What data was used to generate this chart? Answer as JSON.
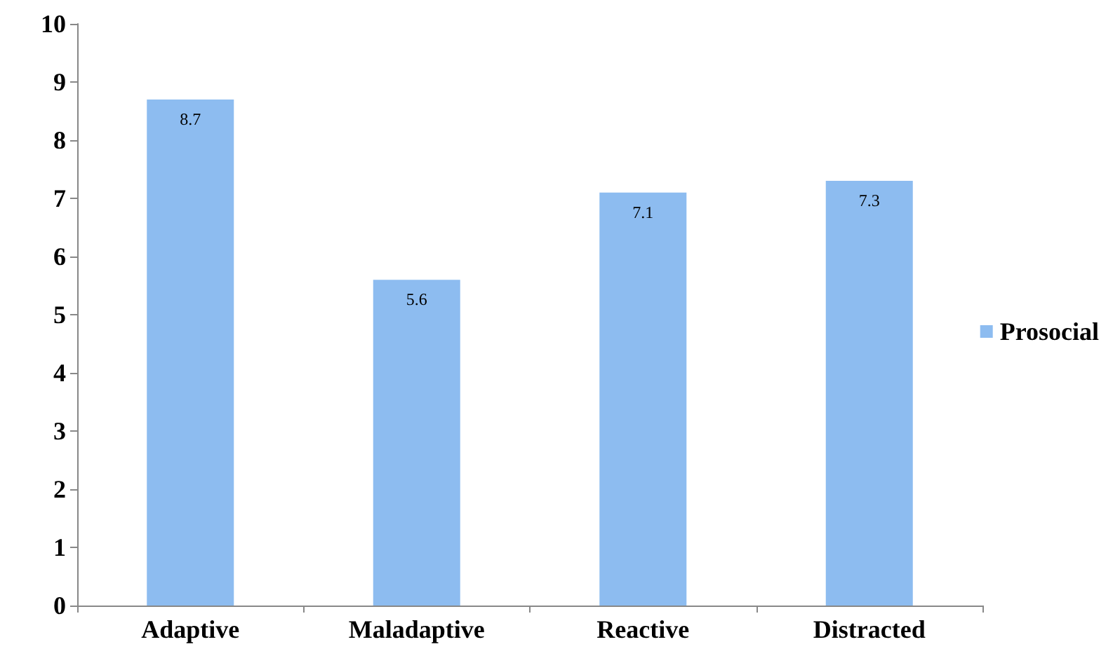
{
  "chart_data": {
    "type": "bar",
    "categories": [
      "Adaptive",
      "Maladaptive",
      "Reactive",
      "Distracted"
    ],
    "series": [
      {
        "name": "Prosocial",
        "color": "#8dbcf0",
        "values": [
          8.7,
          5.6,
          7.1,
          7.3
        ]
      }
    ],
    "ylim": [
      0,
      10
    ],
    "yticks": [
      0,
      1,
      2,
      3,
      4,
      5,
      6,
      7,
      8,
      9,
      10
    ],
    "data_labels": true,
    "grid": false,
    "legend": "right"
  }
}
